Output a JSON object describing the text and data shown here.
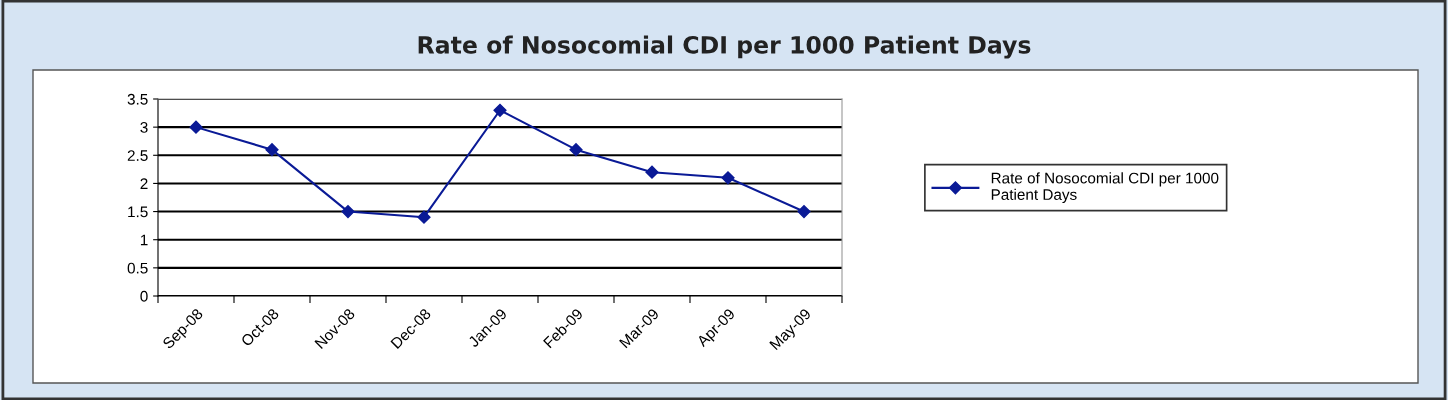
{
  "chart_data": {
    "type": "line",
    "title": "Rate of Nosocomial CDI per 1000 Patient Days",
    "categories": [
      "Sep-08",
      "Oct-08",
      "Nov-08",
      "Dec-08",
      "Jan-09",
      "Feb-09",
      "Mar-09",
      "Apr-09",
      "May-09"
    ],
    "series": [
      {
        "name": "Rate of Nosocomial CDI per 1000\nPatient Days",
        "color": "#0a1a96",
        "values": [
          3.0,
          2.6,
          1.5,
          1.4,
          3.3,
          2.6,
          2.2,
          2.1,
          1.5
        ]
      }
    ],
    "ylim": [
      0,
      3.5
    ],
    "yticks": [
      0,
      0.5,
      1,
      1.5,
      2,
      2.5,
      3,
      3.5
    ],
    "grid": "y",
    "legend": "right",
    "marker": "diamond",
    "line_style": "solid"
  }
}
